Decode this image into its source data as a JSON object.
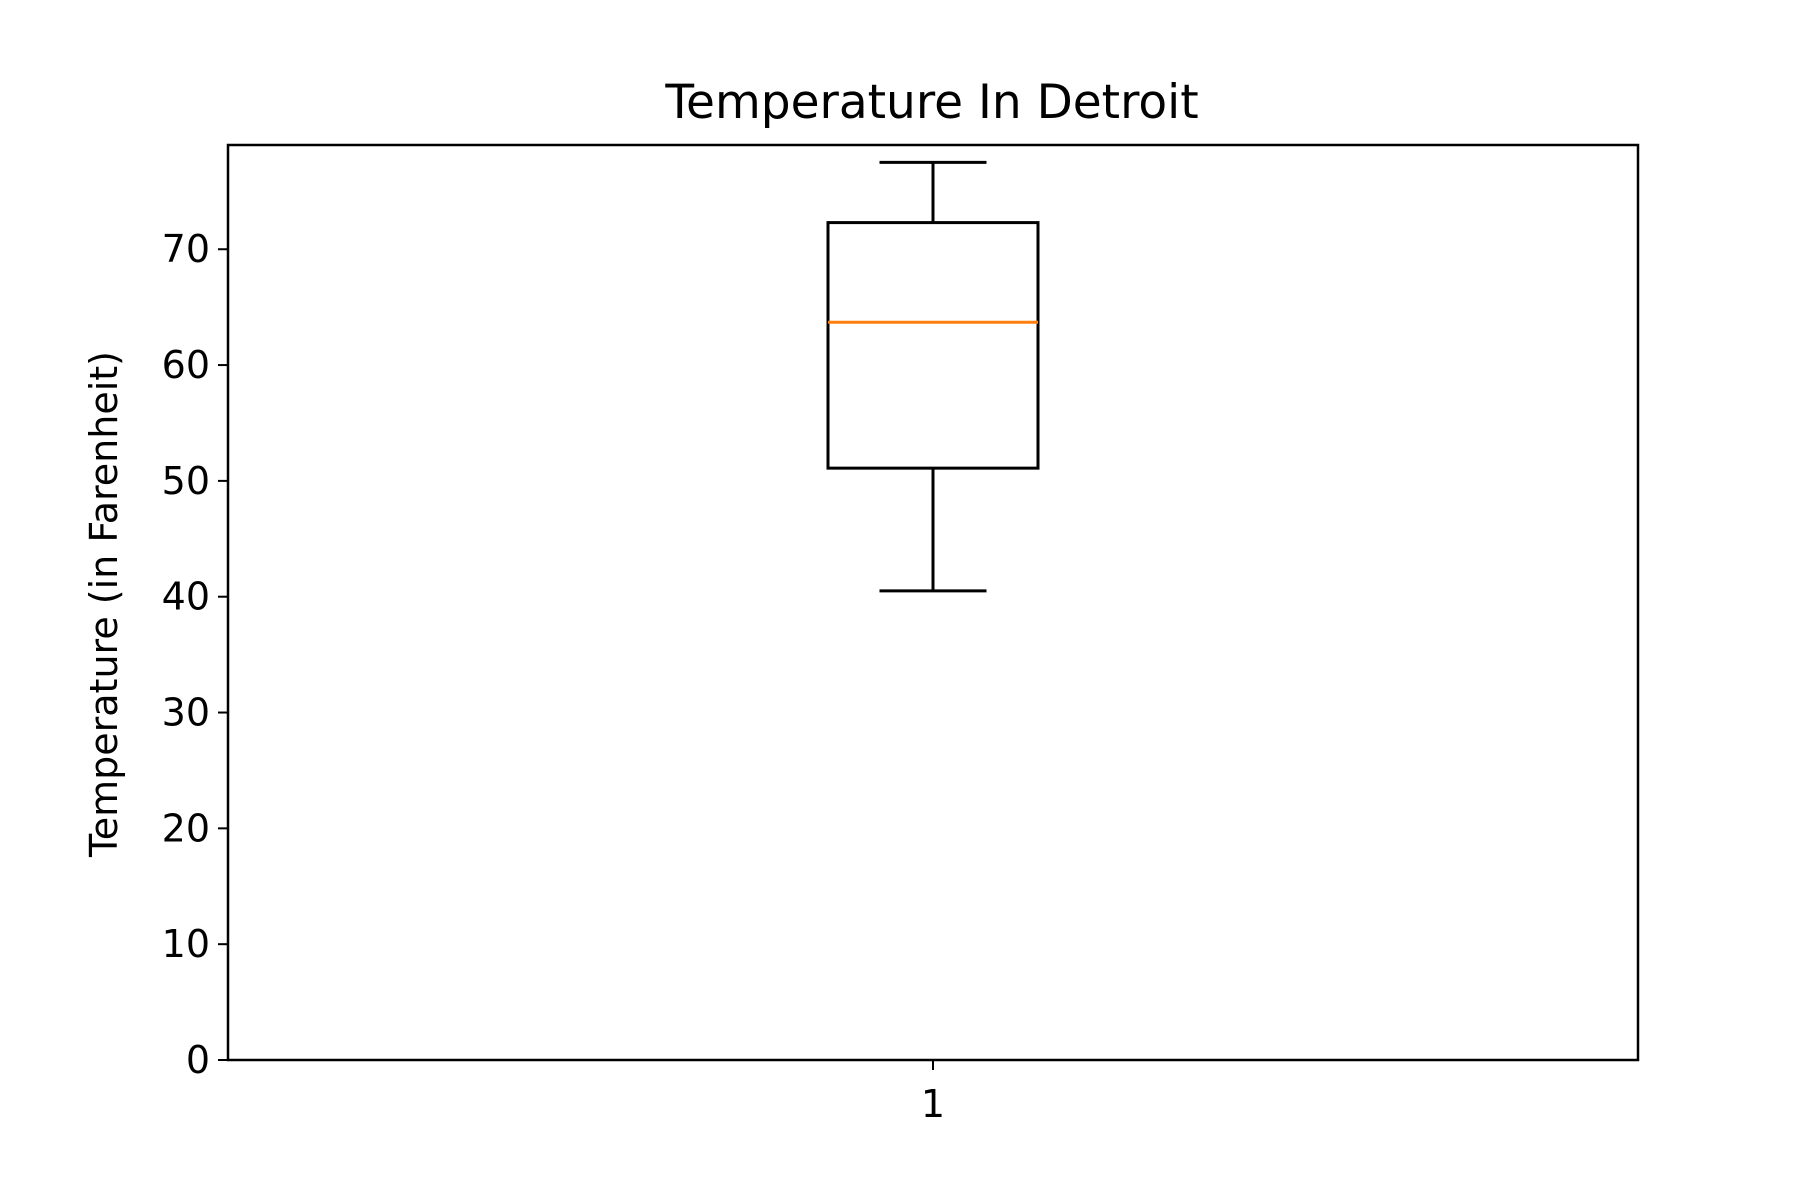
{
  "chart_data": {
    "type": "box",
    "title": "Temperature In Detroit",
    "xlabel": "",
    "ylabel": "Temperature (in Farenheit)",
    "categories": [
      "1"
    ],
    "ylim": [
      0,
      79
    ],
    "yticks": [
      0,
      10,
      20,
      30,
      40,
      50,
      60,
      70
    ],
    "boxes": [
      {
        "category": "1",
        "whisker_low": 40.5,
        "q1": 51.1,
        "median": 63.7,
        "q3": 72.3,
        "whisker_high": 77.5
      }
    ],
    "grid": false,
    "colors": {
      "box": "#000000",
      "median": "#ff7f0e"
    }
  }
}
